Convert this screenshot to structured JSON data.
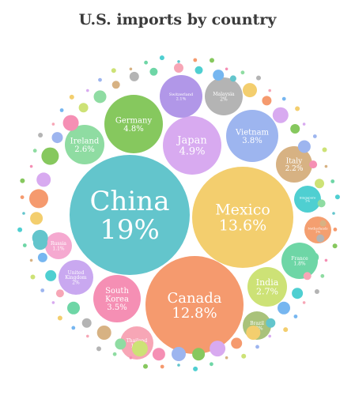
{
  "title": "U.S. imports by country",
  "chart_data": {
    "type": "bubble",
    "title": "U.S. imports by country",
    "unit": "%",
    "countries": [
      {
        "name": "China",
        "label": "China",
        "value": 19,
        "value_label": "19%",
        "color": "#63c5cc"
      },
      {
        "name": "Mexico",
        "label": "Mexico",
        "value": 13.6,
        "value_label": "13.6%",
        "color": "#f3ce6e"
      },
      {
        "name": "Canada",
        "label": "Canada",
        "value": 12.8,
        "value_label": "12.8%",
        "color": "#f59a6e"
      },
      {
        "name": "Japan",
        "label": "Japan",
        "value": 4.9,
        "value_label": "4.9%",
        "color": "#d8aaf0"
      },
      {
        "name": "Germany",
        "label": "Germany",
        "value": 4.8,
        "value_label": "4.8%",
        "color": "#86c85e"
      },
      {
        "name": "Vietnam",
        "label": "Vietnam",
        "value": 3.8,
        "value_label": "3.8%",
        "color": "#9db5ef"
      },
      {
        "name": "South Korea",
        "label": "South Korea",
        "value": 3.5,
        "value_label": "3.5%",
        "color": "#f58fb4"
      },
      {
        "name": "India",
        "label": "India",
        "value": 2.7,
        "value_label": "2.7%",
        "color": "#cde276"
      },
      {
        "name": "Ireland",
        "label": "Ireland",
        "value": 2.6,
        "value_label": "2.6%",
        "color": "#8fdca2"
      },
      {
        "name": "Italy",
        "label": "Italy",
        "value": 2.2,
        "value_label": "2.2%",
        "color": "#d7b283"
      },
      {
        "name": "Malaysia",
        "label": "Malaysia",
        "value": 2,
        "value_label": "2%",
        "color": "#b4b4b4"
      },
      {
        "name": "Switzerland",
        "label": "Switzerland",
        "value": 2.1,
        "value_label": "2.1%",
        "color": "#b197e8"
      },
      {
        "name": "France",
        "label": "France",
        "value": 1.8,
        "value_label": "1.8%",
        "color": "#6ed6a6"
      },
      {
        "name": "Thailand",
        "label": "Thailand",
        "value": 1.5,
        "value_label": "1.5%",
        "color": "#f7a6b6"
      },
      {
        "name": "United Kingdom",
        "label": "United Kingdom",
        "value": 2,
        "value_label": "2%",
        "color": "#c9a8f0"
      },
      {
        "name": "Brazil",
        "label": "Brazil",
        "value": 1.2,
        "value_label": "1.2%",
        "color": "#a9c27a"
      },
      {
        "name": "Russia",
        "label": "Russia",
        "value": 1.1,
        "value_label": "1.1%",
        "color": "#f5a9d0"
      },
      {
        "name": "Singapore",
        "label": "Singapore",
        "value": 1,
        "value_label": "1%",
        "color": "#4fcfd1"
      },
      {
        "name": "Netherlands",
        "label": "Netherlands",
        "value": 1,
        "value_label": "1%",
        "color": "#f49f70"
      }
    ]
  }
}
